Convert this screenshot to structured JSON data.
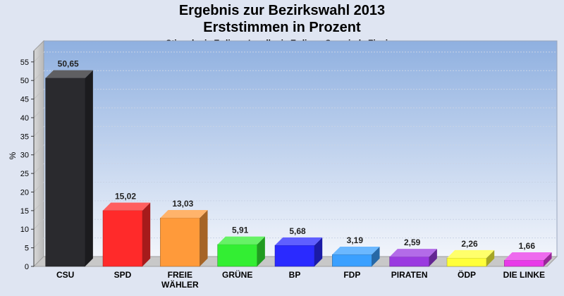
{
  "header": {
    "title": "Ergebnis zur Bezirkswahl 2013",
    "subtitle": "Erststimmen in Prozent",
    "subsubtitle": "Stimmkreis Erding - Landkreis Erding - Gemeinde Finsing"
  },
  "chart_data": {
    "type": "bar",
    "title": "Ergebnis zur Bezirkswahl 2013",
    "subtitle": "Erststimmen in Prozent",
    "xlabel": "",
    "ylabel": "%",
    "ylim": [
      0,
      58
    ],
    "yticks": [
      0,
      5,
      10,
      15,
      20,
      25,
      30,
      35,
      40,
      45,
      50,
      55
    ],
    "grid": true,
    "categories": [
      "CSU",
      "SPD",
      "FREIE WÄHLER",
      "GRÜNE",
      "BP",
      "FDP",
      "PIRATEN",
      "ÖDP",
      "DIE LINKE"
    ],
    "category_lines": [
      [
        "CSU"
      ],
      [
        "SPD"
      ],
      [
        "FREIE",
        "WÄHLER"
      ],
      [
        "GRÜNE"
      ],
      [
        "BP"
      ],
      [
        "FDP"
      ],
      [
        "PIRATEN"
      ],
      [
        "ÖDP"
      ],
      [
        "DIE LINKE"
      ]
    ],
    "values": [
      50.65,
      15.02,
      13.03,
      5.91,
      5.68,
      3.19,
      2.59,
      2.26,
      1.66
    ],
    "value_labels": [
      "50,65",
      "15,02",
      "13,03",
      "5,91",
      "5,68",
      "3,19",
      "2,59",
      "2,26",
      "1,66"
    ],
    "colors": [
      "#2a2a2e",
      "#ff2a2a",
      "#ff9a3a",
      "#33ee33",
      "#2a2aff",
      "#3aa0ff",
      "#9a3ae0",
      "#ffff3a",
      "#e83ae8"
    ]
  }
}
